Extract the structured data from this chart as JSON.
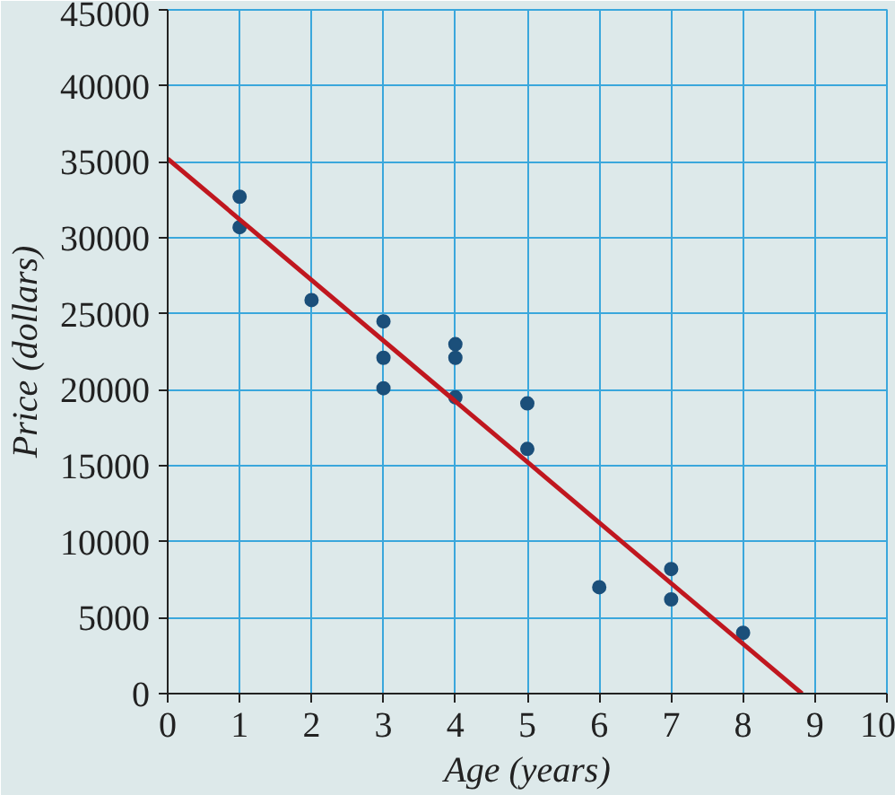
{
  "chart_data": {
    "type": "scatter",
    "xlabel": "Age (years)",
    "ylabel": "Price (dollars)",
    "xlim": [
      0,
      10
    ],
    "ylim": [
      0,
      45000
    ],
    "xticks": [
      0,
      1,
      2,
      3,
      4,
      5,
      6,
      7,
      8,
      9,
      10
    ],
    "yticks": [
      0,
      5000,
      10000,
      15000,
      20000,
      25000,
      30000,
      35000,
      40000,
      45000
    ],
    "grid": true,
    "series": [
      {
        "marker": "circle",
        "color": "#1b4f7a",
        "x": [
          1,
          1,
          2,
          3,
          3,
          3,
          4,
          4,
          4,
          5,
          5,
          6,
          7,
          7,
          8
        ],
        "values": [
          32700,
          30700,
          25900,
          24500,
          22100,
          20100,
          23000,
          22100,
          19500,
          19100,
          16100,
          7000,
          8200,
          6200,
          4000
        ]
      },
      {
        "type": "line",
        "color": "#c0171f",
        "x": [
          0,
          8.82
        ],
        "values": [
          35200,
          0
        ]
      }
    ]
  }
}
